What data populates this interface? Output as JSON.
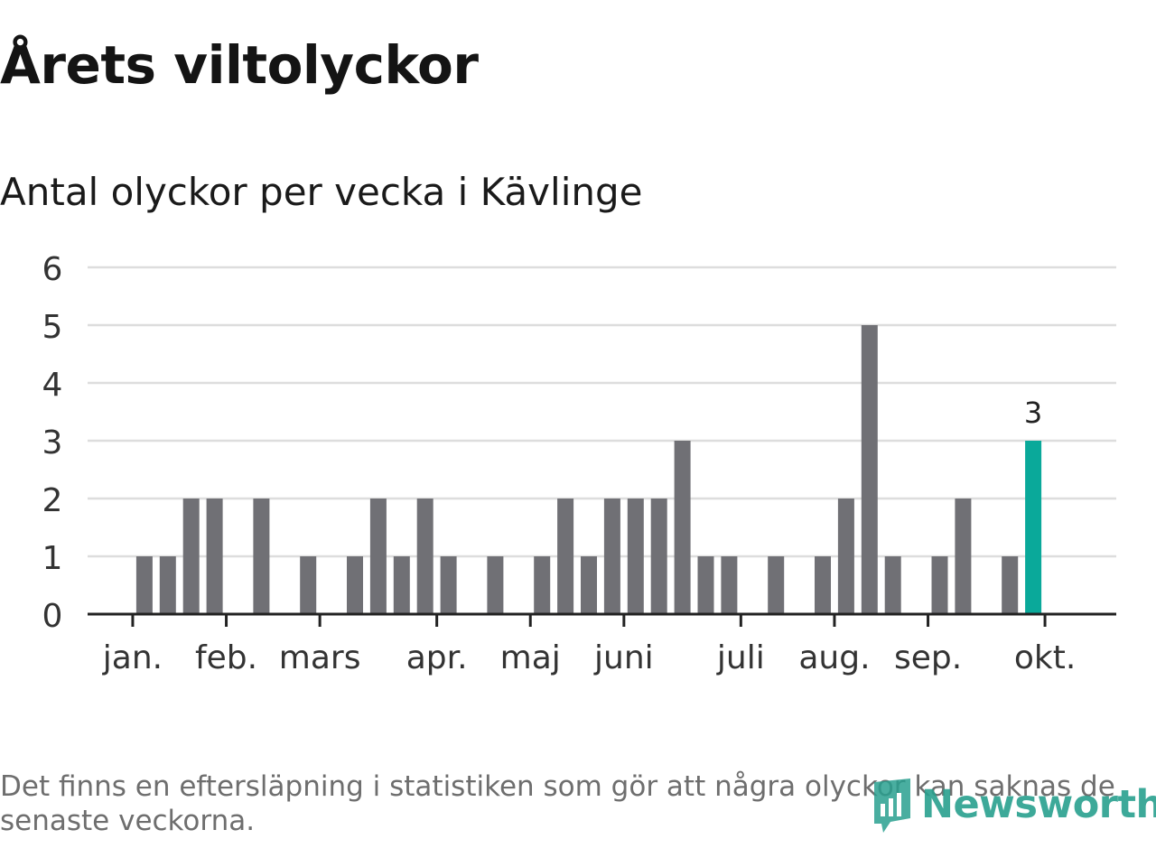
{
  "header": {
    "title": "Årets viltolyckor",
    "subtitle": "Antal olyckor per vecka i Kävlinge"
  },
  "chart_data": {
    "type": "bar",
    "title": "Årets viltolyckor",
    "subtitle": "Antal olyckor per vecka i Kävlinge",
    "xlabel": "",
    "ylabel": "",
    "ylim": [
      0,
      6
    ],
    "yticks": [
      "0",
      "1",
      "2",
      "3",
      "4",
      "5",
      "6"
    ],
    "grid": true,
    "month_labels": [
      "jan.",
      "feb.",
      "mars",
      "apr.",
      "maj",
      "juni",
      "juli",
      "aug.",
      "sep.",
      "okt."
    ],
    "month_tick_weeks": [
      1.5,
      5.5,
      9.5,
      14.5,
      18.5,
      22.5,
      27.5,
      31.5,
      35.5,
      40.5
    ],
    "weeks": [
      1,
      2,
      3,
      4,
      5,
      6,
      7,
      8,
      9,
      10,
      11,
      12,
      13,
      14,
      15,
      16,
      17,
      18,
      19,
      20,
      21,
      22,
      23,
      24,
      25,
      26,
      27,
      28,
      29,
      30,
      31,
      32,
      33,
      34,
      35,
      36,
      37,
      38,
      39,
      40
    ],
    "values": [
      0,
      1,
      1,
      2,
      2,
      0,
      2,
      0,
      1,
      0,
      1,
      2,
      1,
      2,
      1,
      0,
      1,
      0,
      1,
      2,
      1,
      2,
      2,
      2,
      3,
      1,
      1,
      0,
      1,
      0,
      1,
      2,
      5,
      1,
      0,
      1,
      2,
      0,
      1,
      3
    ],
    "highlight_index": 39,
    "highlight_label": "3",
    "colors": {
      "bar": "#707075",
      "highlight": "#0aa99a",
      "grid": "#dddddd",
      "axis": "#222222"
    }
  },
  "footnote": "Det finns en eftersläpning i statistiken som gör att några olyckor kan saknas de senaste veckorna.",
  "logo": {
    "text": "Newsworthy",
    "icon": "newsworthy-logo-icon",
    "color": "#29a08f"
  }
}
